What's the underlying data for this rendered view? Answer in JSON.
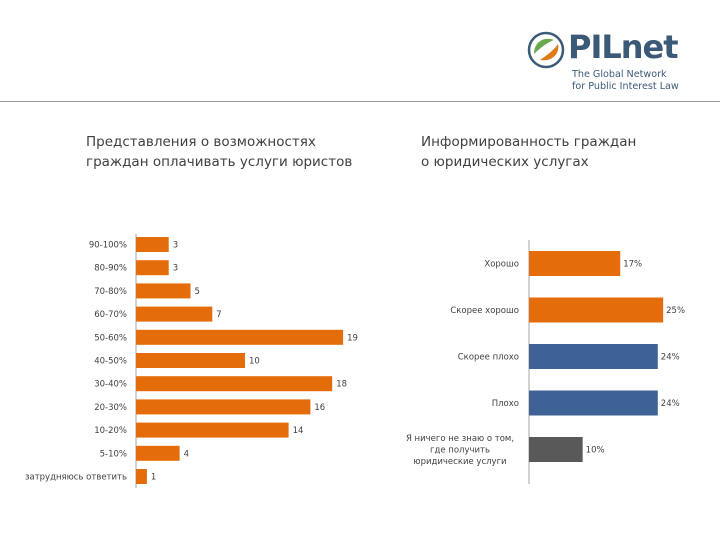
{
  "logo": {
    "name": "PILnet",
    "tagline_line1": "The Global Network",
    "tagline_line2": "for Public Interest Law",
    "colors": {
      "green": "#6aa84f",
      "orange": "#e07b1a",
      "blue": "#3b5a78"
    }
  },
  "chart_data": [
    {
      "type": "bar",
      "orientation": "horizontal",
      "title": "Представления о возможностях граждан оплачивать услуги юристов",
      "title_lines": [
        "Представления о возможностях",
        "граждан оплачивать услуги юристов"
      ],
      "categories": [
        "90-100%",
        "80-90%",
        "70-80%",
        "60-70%",
        "50-60%",
        "40-50%",
        "30-40%",
        "20-30%",
        "10-20%",
        "5-10%",
        "затрудняюсь ответить"
      ],
      "values": [
        3,
        3,
        5,
        7,
        19,
        10,
        18,
        16,
        14,
        4,
        1
      ],
      "value_labels": [
        "3",
        "3",
        "5",
        "7",
        "19",
        "10",
        "18",
        "16",
        "14",
        "4",
        "1"
      ],
      "xlim": [
        0,
        20
      ],
      "color": "#e46c0a",
      "grid": false,
      "legend": "none"
    },
    {
      "type": "bar",
      "orientation": "horizontal",
      "title": "Информированность граждан о юридических услугах",
      "title_lines": [
        "Информированность граждан",
        "о юридических услугах"
      ],
      "categories": [
        "Хорошо",
        "Скорее хорошо",
        "Скорее плохо",
        "Плохо",
        "Я ничего не знаю о том, где получить юридические услуги"
      ],
      "category_lines": [
        [
          "Хорошо"
        ],
        [
          "Скорее хорошо"
        ],
        [
          "Скорее плохо"
        ],
        [
          "Плохо"
        ],
        [
          "Я ничего не знаю о том,",
          "где получить",
          "юридические услуги"
        ]
      ],
      "values": [
        17,
        25,
        24,
        24,
        10
      ],
      "value_labels": [
        "17%",
        "25%",
        "24%",
        "24%",
        "10%"
      ],
      "xlim": [
        0,
        25
      ],
      "colors": [
        "#e46c0a",
        "#e46c0a",
        "#3e6296",
        "#3e6296",
        "#595959"
      ],
      "grid": false,
      "legend": "none"
    }
  ]
}
